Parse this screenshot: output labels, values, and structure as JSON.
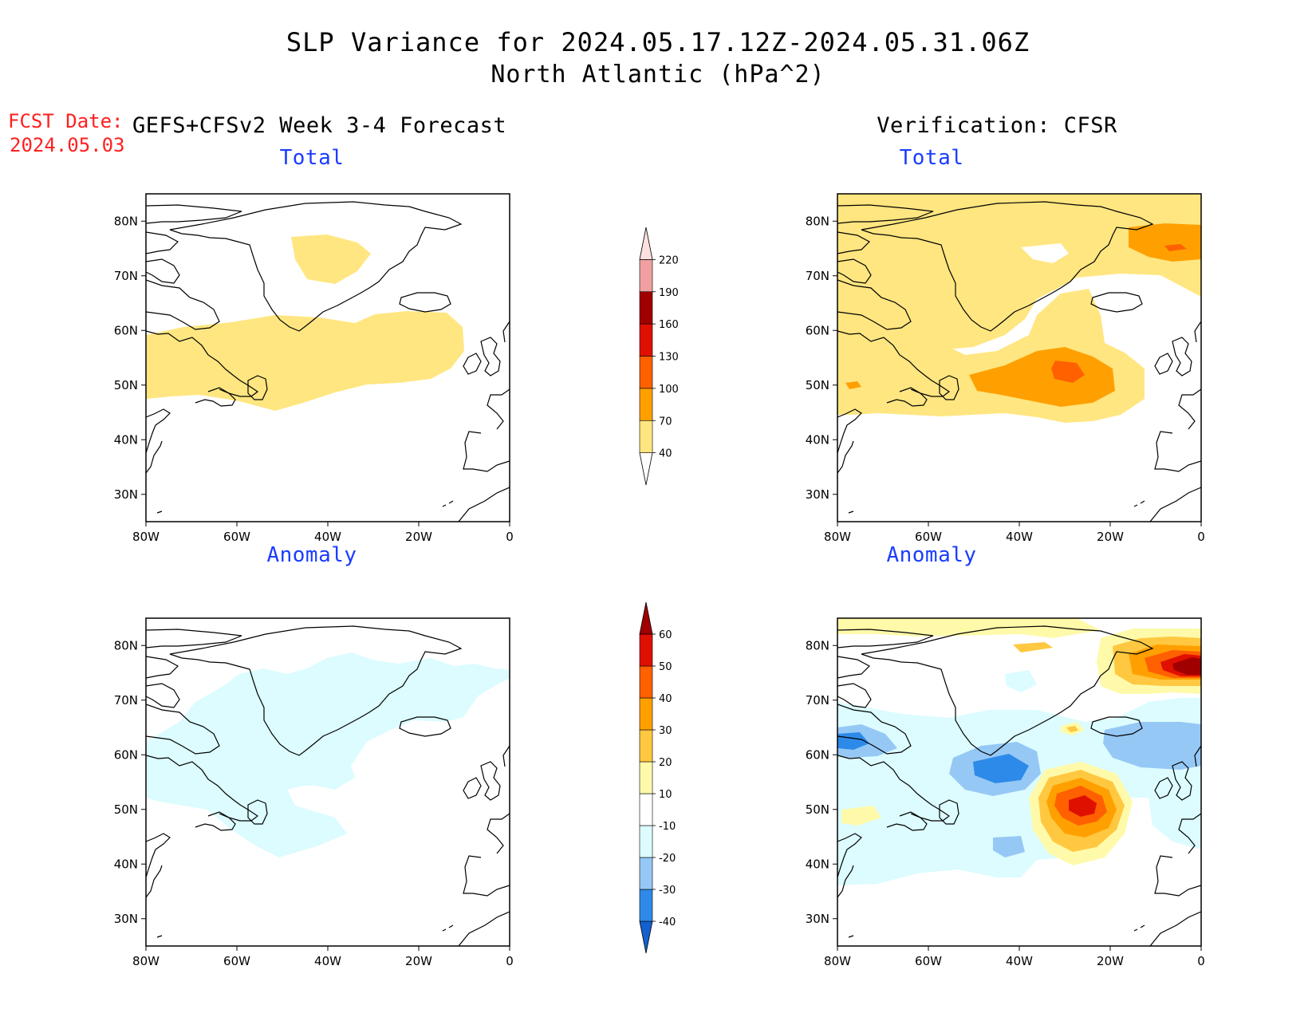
{
  "title": "SLP Variance for 2024.05.17.12Z-2024.05.31.06Z",
  "subtitle": "North Atlantic (hPa^2)",
  "forecast_date_label": "FCST Date:",
  "forecast_date": "2024.05.03",
  "left_column_title": "GEFS+CFSv2 Week 3-4 Forecast",
  "right_column_title": "Verification: CFSR",
  "panel_titles": {
    "top_left": "Total",
    "top_right": "Total",
    "bottom_left": "Anomaly",
    "bottom_right": "Anomaly"
  },
  "lat_labels": [
    "80N",
    "70N",
    "60N",
    "50N",
    "40N",
    "30N"
  ],
  "lon_labels": [
    "80W",
    "60W",
    "40W",
    "20W",
    "0"
  ],
  "colorbar_total": {
    "labels": [
      "40",
      "70",
      "100",
      "130",
      "160",
      "190",
      "220"
    ],
    "colors": [
      "#ffe680",
      "#ffa000",
      "#ff6000",
      "#e01000",
      "#a00000",
      "#f0a0a0",
      "#ffe0e0"
    ]
  },
  "colorbar_anomaly": {
    "labels": [
      "-40",
      "-30",
      "-20",
      "-10",
      "10",
      "20",
      "30",
      "40",
      "50",
      "60"
    ],
    "colors": [
      "#1560d0",
      "#2e8ae8",
      "#96c8f5",
      "#dcfcff",
      "#ffffff",
      "#fffaaa",
      "#ffc840",
      "#ffa000",
      "#ff6000",
      "#e01000",
      "#a00000"
    ]
  },
  "chart_data": {
    "type": "heatmap",
    "title": "SLP Variance for 2024.05.17.12Z-2024.05.31.06Z",
    "subtitle": "North Atlantic (hPa^2)",
    "region": {
      "lon_range": [
        -80,
        0
      ],
      "lat_range": [
        25,
        85
      ]
    },
    "panels": [
      {
        "name": "GEFS+CFSv2 Week 3-4 Forecast — Total",
        "levels": [
          40,
          70,
          100,
          130,
          160,
          190,
          220
        ],
        "features": [
          {
            "lon": -35,
            "lat": 53,
            "value_range": [
              40,
              70
            ]
          },
          {
            "lon": -38,
            "lat": 75,
            "value_range": [
              40,
              70
            ]
          }
        ]
      },
      {
        "name": "Verification: CFSR — Total",
        "levels": [
          40,
          70,
          100,
          130,
          160,
          190,
          220
        ],
        "features": [
          {
            "lon": -28,
            "lat": 53,
            "value_range": [
              100,
              130
            ]
          },
          {
            "lon": -5,
            "lat": 75,
            "value_range": [
              100,
              130
            ]
          }
        ]
      },
      {
        "name": "GEFS+CFSv2 Week 3-4 Forecast — Anomaly",
        "levels": [
          -40,
          -30,
          -20,
          -10,
          10,
          20,
          30,
          40,
          50,
          60
        ],
        "features": [
          {
            "lon": -50,
            "lat": 60,
            "value_range": [
              -20,
              -10
            ]
          }
        ]
      },
      {
        "name": "Verification: CFSR — Anomaly",
        "levels": [
          -40,
          -30,
          -20,
          -10,
          10,
          20,
          30,
          40,
          50,
          60
        ],
        "features": [
          {
            "lon": -28,
            "lat": 52,
            "value_range": [
              50,
              60
            ]
          },
          {
            "lon": -5,
            "lat": 76,
            "value_range": [
              60,
              70
            ]
          },
          {
            "lon": -42,
            "lat": 57,
            "value_range": [
              -40,
              -30
            ]
          },
          {
            "lon": -75,
            "lat": 63,
            "value_range": [
              -40,
              -30
            ]
          },
          {
            "lon": -8,
            "lat": 63,
            "value_range": [
              -30,
              -20
            ]
          }
        ]
      }
    ]
  }
}
